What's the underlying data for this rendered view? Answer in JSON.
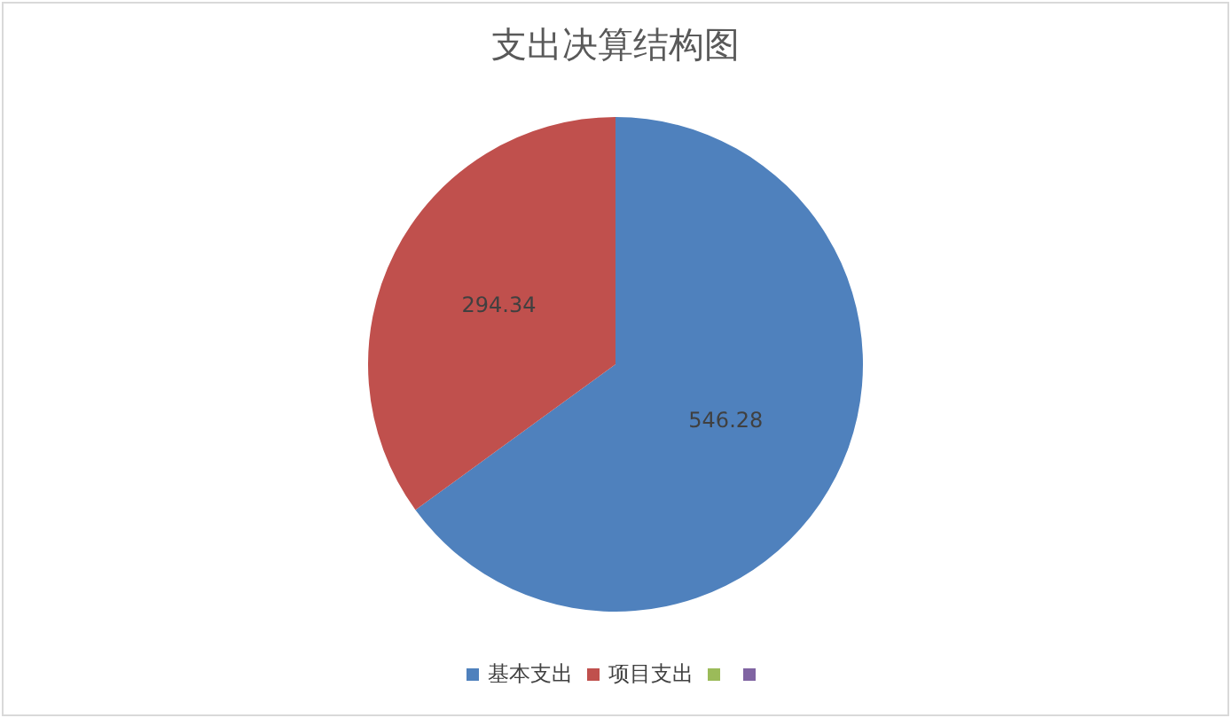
{
  "chart_data": {
    "type": "pie",
    "title": "支出决算结构图",
    "categories": [
      "基本支出",
      "项目支出",
      null,
      null
    ],
    "values": [
      546.28,
      294.34,
      0,
      0
    ],
    "colors": [
      "#4f81bd",
      "#c0504d",
      "#9bbb59",
      "#8064a2"
    ],
    "data_labels": true,
    "legend": "bottom"
  }
}
